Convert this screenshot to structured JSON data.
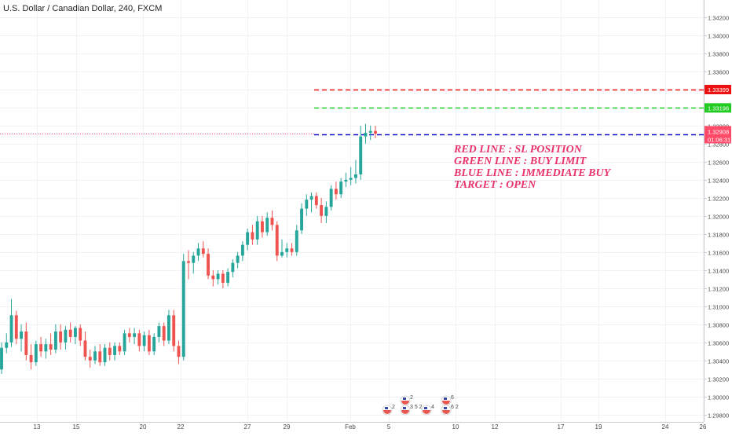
{
  "chart_data": {
    "type": "candlestick",
    "title": "U.S. Dollar / Canadian Dollar, 240, FXCM",
    "symbol": "USDCAD",
    "timeframe": "240",
    "source": "FXCM",
    "x_tick_labels": [
      "13",
      "15",
      "20",
      "22",
      "27",
      "29",
      "Feb",
      "5",
      "10",
      "12",
      "17",
      "19",
      "24",
      "26"
    ],
    "y_tick_labels": [
      "1.29800",
      "1.30000",
      "1.30200",
      "1.30400",
      "1.30600",
      "1.30800",
      "1.31000",
      "1.31200",
      "1.31400",
      "1.31600",
      "1.31800",
      "1.32000",
      "1.32200",
      "1.32400",
      "1.32600",
      "1.32800",
      "1.33000",
      "1.33200",
      "1.33400",
      "1.33600",
      "1.33800",
      "1.34000",
      "1.34200"
    ],
    "ylim": [
      1.2972,
      1.3426
    ],
    "candles": [
      [
        1.303,
        1.306,
        1.3025,
        1.3054
      ],
      [
        1.3054,
        1.307,
        1.3048,
        1.306
      ],
      [
        1.306,
        1.3108,
        1.3055,
        1.309
      ],
      [
        1.309,
        1.3095,
        1.3058,
        1.3064
      ],
      [
        1.3064,
        1.308,
        1.305,
        1.3072
      ],
      [
        1.3072,
        1.3082,
        1.304,
        1.3046
      ],
      [
        1.3046,
        1.3058,
        1.303,
        1.3038
      ],
      [
        1.3038,
        1.3062,
        1.3034,
        1.3058
      ],
      [
        1.3058,
        1.3066,
        1.3044,
        1.305
      ],
      [
        1.305,
        1.3064,
        1.3042,
        1.3058
      ],
      [
        1.3058,
        1.307,
        1.3046,
        1.3052
      ],
      [
        1.3052,
        1.308,
        1.3048,
        1.3072
      ],
      [
        1.3072,
        1.308,
        1.3052,
        1.306
      ],
      [
        1.306,
        1.3078,
        1.3052,
        1.3074
      ],
      [
        1.3074,
        1.3082,
        1.306,
        1.3066
      ],
      [
        1.3066,
        1.3078,
        1.3058,
        1.3076
      ],
      [
        1.3076,
        1.308,
        1.3056,
        1.3062
      ],
      [
        1.3062,
        1.3072,
        1.304,
        1.3044
      ],
      [
        1.3044,
        1.3052,
        1.3032,
        1.304
      ],
      [
        1.304,
        1.3056,
        1.3036,
        1.305
      ],
      [
        1.305,
        1.3058,
        1.3034,
        1.3038
      ],
      [
        1.3038,
        1.3058,
        1.3034,
        1.3054
      ],
      [
        1.3054,
        1.306,
        1.304,
        1.3046
      ],
      [
        1.3046,
        1.306,
        1.304,
        1.3056
      ],
      [
        1.3056,
        1.306,
        1.3046,
        1.305
      ],
      [
        1.305,
        1.3074,
        1.3046,
        1.307
      ],
      [
        1.307,
        1.3076,
        1.306,
        1.3066
      ],
      [
        1.3066,
        1.3076,
        1.3058,
        1.307
      ],
      [
        1.307,
        1.3074,
        1.305,
        1.3056
      ],
      [
        1.3056,
        1.3072,
        1.305,
        1.3068
      ],
      [
        1.3068,
        1.3074,
        1.3046,
        1.305
      ],
      [
        1.305,
        1.307,
        1.3046,
        1.3066
      ],
      [
        1.3066,
        1.3082,
        1.306,
        1.3078
      ],
      [
        1.3078,
        1.3082,
        1.3056,
        1.3062
      ],
      [
        1.3062,
        1.3096,
        1.3058,
        1.309
      ],
      [
        1.309,
        1.3096,
        1.305,
        1.3056
      ],
      [
        1.3056,
        1.3062,
        1.3036,
        1.3044
      ],
      [
        1.3044,
        1.3158,
        1.304,
        1.315
      ],
      [
        1.315,
        1.3162,
        1.313,
        1.3148
      ],
      [
        1.3148,
        1.316,
        1.3136,
        1.3156
      ],
      [
        1.3156,
        1.317,
        1.315,
        1.3164
      ],
      [
        1.3164,
        1.3172,
        1.3154,
        1.3158
      ],
      [
        1.3158,
        1.3164,
        1.313,
        1.3134
      ],
      [
        1.3134,
        1.314,
        1.3122,
        1.313
      ],
      [
        1.313,
        1.314,
        1.3124,
        1.3136
      ],
      [
        1.3136,
        1.314,
        1.312,
        1.3126
      ],
      [
        1.3126,
        1.3142,
        1.3122,
        1.3138
      ],
      [
        1.3138,
        1.3152,
        1.3132,
        1.3148
      ],
      [
        1.3148,
        1.316,
        1.3142,
        1.3156
      ],
      [
        1.3156,
        1.3172,
        1.315,
        1.3168
      ],
      [
        1.3168,
        1.3186,
        1.3162,
        1.3182
      ],
      [
        1.3182,
        1.319,
        1.3168,
        1.3174
      ],
      [
        1.3174,
        1.32,
        1.3168,
        1.3194
      ],
      [
        1.3194,
        1.32,
        1.3176,
        1.3182
      ],
      [
        1.3182,
        1.3204,
        1.3178,
        1.3198
      ],
      [
        1.3198,
        1.3206,
        1.3184,
        1.319
      ],
      [
        1.319,
        1.3194,
        1.315,
        1.3156
      ],
      [
        1.3156,
        1.3174,
        1.3154,
        1.316
      ],
      [
        1.316,
        1.317,
        1.3154,
        1.3164
      ],
      [
        1.3164,
        1.317,
        1.3156,
        1.316
      ],
      [
        1.316,
        1.319,
        1.3156,
        1.3184
      ],
      [
        1.3184,
        1.3214,
        1.318,
        1.3208
      ],
      [
        1.3208,
        1.3224,
        1.32,
        1.3218
      ],
      [
        1.3218,
        1.3226,
        1.3204,
        1.3222
      ],
      [
        1.3222,
        1.3226,
        1.3208,
        1.3212
      ],
      [
        1.3212,
        1.322,
        1.3192,
        1.32
      ],
      [
        1.32,
        1.3216,
        1.3192,
        1.321
      ],
      [
        1.321,
        1.3234,
        1.3206,
        1.323
      ],
      [
        1.323,
        1.3238,
        1.3218,
        1.3224
      ],
      [
        1.3224,
        1.3242,
        1.322,
        1.3238
      ],
      [
        1.3238,
        1.3248,
        1.3232,
        1.324
      ],
      [
        1.324,
        1.3254,
        1.3234,
        1.3242
      ],
      [
        1.3242,
        1.3262,
        1.3236,
        1.3246
      ],
      [
        1.3246,
        1.33,
        1.324,
        1.3288
      ],
      [
        1.3288,
        1.3302,
        1.328,
        1.3292
      ],
      [
        1.3292,
        1.33,
        1.3284,
        1.3294
      ],
      [
        1.3294,
        1.33,
        1.3286,
        1.3291
      ]
    ],
    "horizontal_lines": [
      {
        "value": 1.33399,
        "color": "#ee1111",
        "style": "dashed",
        "label": "1.33399"
      },
      {
        "value": 1.33196,
        "color": "#22cc22",
        "style": "dashed",
        "label": "1.33196"
      },
      {
        "value": 1.32906,
        "color": "#1111cc",
        "style": "dashed",
        "label": "1.32906"
      }
    ],
    "last_price": {
      "value": 1.32908,
      "label": "1.32908",
      "countdown": "01:06:31",
      "color": "#ff4a68"
    },
    "annotations": [
      "RED LINE : SL POSITION",
      "GREEN LINE : BUY LIMIT",
      "BLUE LINE : IMMEDIATE BUY",
      "TARGET : OPEN"
    ],
    "event_markers": [
      "2",
      "2",
      "3 5 2",
      "4",
      "6",
      "6 2"
    ],
    "colors": {
      "up": "#26a69a",
      "down": "#ef5350",
      "annotation": "#e8336a",
      "axis_text": "#4a4a4a",
      "grid": "#f0f3f6"
    },
    "grid": true
  }
}
